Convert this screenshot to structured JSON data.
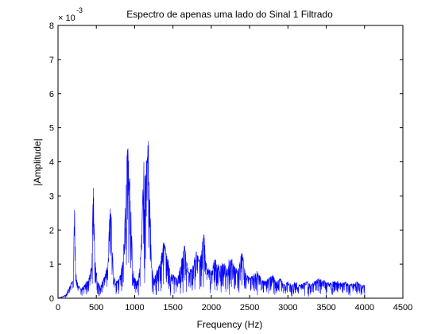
{
  "chart_data": {
    "type": "line",
    "title": "Espectro de apenas uma lado do Sinal 1 Filtrado",
    "xlabel": "Frequency (Hz)",
    "ylabel": "|Amplitude|",
    "y_multiplier_base": "× 10",
    "y_multiplier_exponent": "-3",
    "xlim": [
      0,
      4500
    ],
    "ylim": [
      0,
      8
    ],
    "y_scale": 0.001,
    "grid": false,
    "legend": "none",
    "x_ticks": [
      0,
      500,
      1000,
      1500,
      2000,
      2500,
      3000,
      3500,
      4000,
      4500
    ],
    "x_tick_labels": [
      "0",
      "500",
      "1000",
      "1500",
      "2000",
      "2500",
      "3000",
      "3500",
      "4000",
      "4500"
    ],
    "y_ticks": [
      0,
      1,
      2,
      3,
      4,
      5,
      6,
      7,
      8
    ],
    "y_tick_labels": [
      "0",
      "1",
      "2",
      "3",
      "4",
      "5",
      "6",
      "7",
      "8"
    ],
    "series": [
      {
        "color": "#0000ff",
        "envelope": {
          "x": [
            0,
            100,
            150,
            200,
            215,
            230,
            260,
            300,
            350,
            400,
            440,
            460,
            480,
            520,
            560,
            600,
            650,
            680,
            700,
            720,
            750,
            800,
            850,
            880,
            900,
            920,
            940,
            960,
            980,
            1000,
            1050,
            1080,
            1100,
            1120,
            1140,
            1160,
            1180,
            1200,
            1220,
            1250,
            1300,
            1340,
            1360,
            1380,
            1400,
            1440,
            1460,
            1500,
            1560,
            1600,
            1650,
            1700,
            1750,
            1800,
            1850,
            1900,
            1930,
            1960,
            2000,
            2050,
            2100,
            2150,
            2200,
            2250,
            2300,
            2350,
            2400,
            2430,
            2460,
            2500,
            2550,
            2600,
            2650,
            2700,
            2750,
            2800,
            2850,
            2900,
            2950,
            3000,
            3050,
            3100,
            3150,
            3200,
            3250,
            3300,
            3350,
            3400,
            3450,
            3500,
            3550,
            3600,
            3650,
            3700,
            3750,
            3800,
            3850,
            3900,
            3950,
            4000,
            4005,
            4500
          ],
          "y": [
            0.0,
            0.1,
            0.35,
            0.6,
            3.1,
            0.8,
            0.4,
            0.3,
            0.4,
            0.6,
            1.0,
            3.6,
            1.2,
            0.5,
            0.4,
            0.6,
            1.0,
            2.9,
            2.3,
            0.8,
            0.5,
            0.6,
            1.2,
            2.8,
            4.8,
            4.6,
            3.5,
            2.0,
            0.9,
            0.6,
            0.6,
            1.4,
            2.9,
            4.1,
            3.6,
            4.2,
            4.95,
            3.0,
            1.0,
            0.6,
            0.9,
            1.1,
            1.5,
            1.7,
            1.5,
            1.1,
            0.8,
            0.7,
            0.6,
            1.0,
            1.6,
            0.8,
            0.9,
            1.4,
            1.1,
            2.1,
            1.1,
            0.9,
            0.8,
            1.2,
            1.0,
            1.1,
            0.9,
            1.3,
            1.0,
            0.8,
            1.5,
            0.9,
            0.7,
            0.6,
            0.7,
            0.8,
            0.6,
            0.5,
            0.6,
            0.7,
            0.5,
            0.6,
            0.4,
            0.5,
            0.4,
            0.5,
            0.4,
            0.45,
            0.5,
            0.4,
            0.5,
            0.6,
            0.55,
            0.5,
            0.45,
            0.5,
            0.5,
            0.45,
            0.5,
            0.4,
            0.45,
            0.5,
            0.4,
            0.4,
            0.0,
            0.0
          ]
        }
      }
    ]
  }
}
